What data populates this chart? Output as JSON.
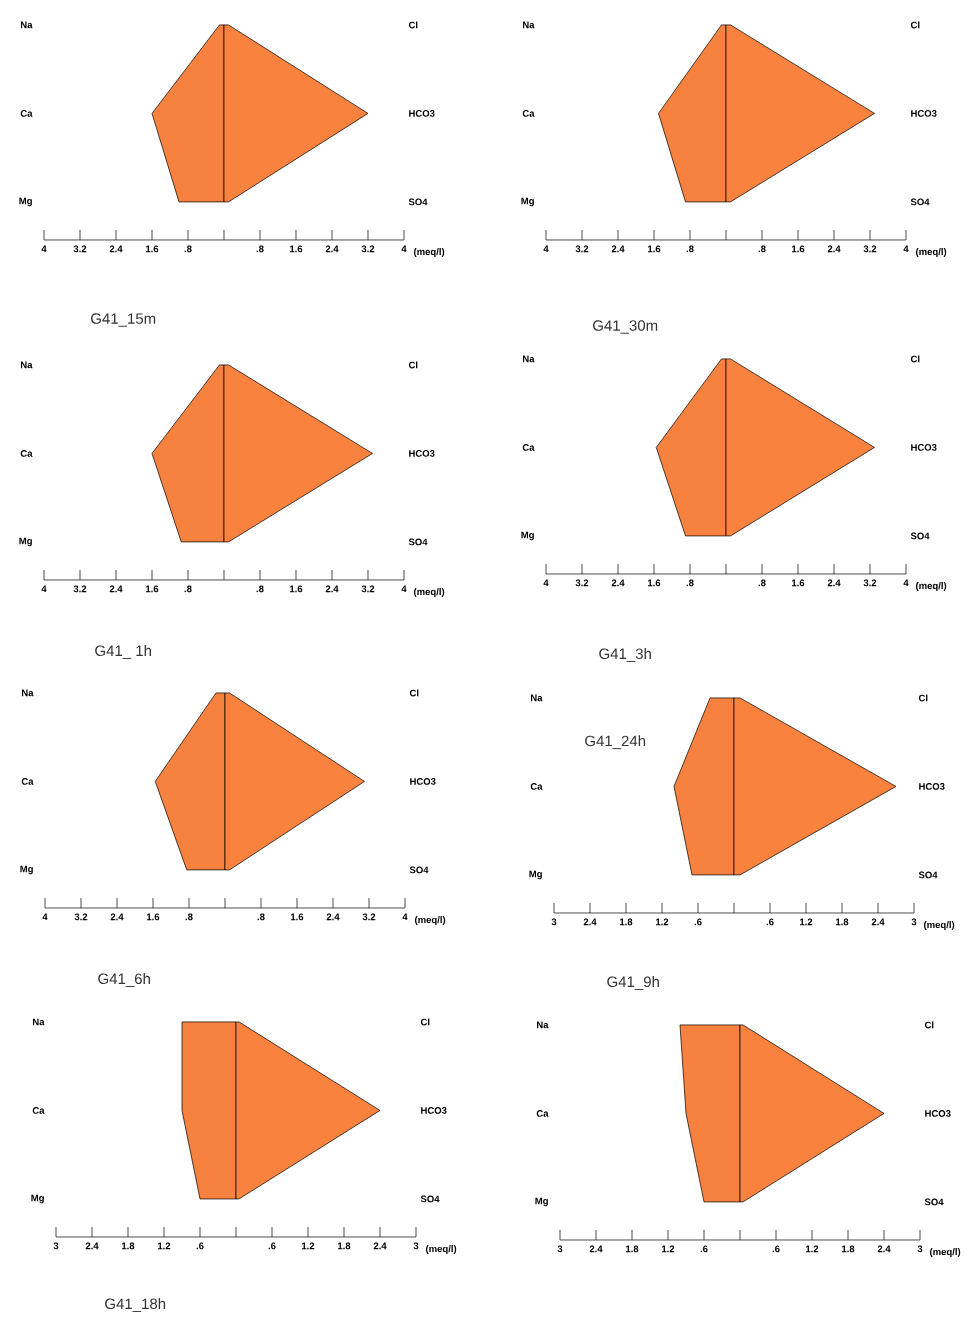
{
  "chart_data": [
    {
      "type": "area",
      "orientation": "horizontal",
      "title": "G41_15m",
      "xlabel": "(meq/l)",
      "categories": [
        "Na",
        "Ca",
        "Mg"
      ],
      "annotations": [
        "Cl",
        "HCO3",
        "SO4"
      ],
      "series": [
        {
          "color": "#f7813f",
          "values": [
            -0.1,
            -1.6,
            -1.0
          ]
        },
        {
          "color": "#f8823e",
          "values": [
            0.1,
            3.2,
            0.1
          ]
        }
      ],
      "xlim": [
        -4,
        4
      ],
      "xticks": [
        {
          "value": -4,
          "label": "4"
        },
        {
          "value": -3.2,
          "label": "3.2"
        },
        {
          "value": -2.4,
          "label": "2.4"
        },
        {
          "value": -1.6,
          "label": "1.6"
        },
        {
          "value": -0.8,
          "label": ".8"
        },
        {
          "value": 0,
          "label": null
        },
        {
          "value": 0.8,
          "label": ".8"
        },
        1.6,
        2.4,
        3.2,
        4
      ]
    },
    {
      "type": "area",
      "orientation": "horizontal",
      "title": "G41_30m",
      "xlabel": "(meq/l)",
      "categories": [
        "Na",
        "Ca",
        "Mg"
      ],
      "annotations": [
        "Cl",
        "HCO3",
        "SO4"
      ],
      "series": [
        {
          "color": "#f7813f",
          "values": [
            -0.1,
            -1.5,
            -0.9
          ]
        },
        {
          "color": "#f8823e",
          "values": [
            0.1,
            3.3,
            0.1
          ]
        }
      ],
      "xlim": [
        -4,
        4
      ],
      "xticks": [
        {
          "value": -4,
          "label": "4"
        },
        {
          "value": -3.2,
          "label": "3.2"
        },
        {
          "value": -2.4,
          "label": "2.4"
        },
        {
          "value": -1.6,
          "label": "1.6"
        },
        {
          "value": -0.8,
          "label": ".8"
        },
        {
          "value": 0,
          "label": null
        },
        {
          "value": 0.8,
          "label": ".8"
        },
        1.6,
        2.4,
        3.2,
        4
      ]
    },
    {
      "type": "area",
      "orientation": "horizontal",
      "title": "G41_ 1h",
      "xlabel": "(meq/l)",
      "categories": [
        "Na",
        "Ca",
        "Mg"
      ],
      "annotations": [
        "Cl",
        "HCO3",
        "SO4"
      ],
      "series": [
        {
          "color": "#f7813f",
          "values": [
            -0.1,
            -1.6,
            -0.95
          ]
        },
        {
          "color": "#f8823e",
          "values": [
            0.1,
            3.3,
            0.1
          ]
        }
      ],
      "xlim": [
        -4,
        4
      ],
      "xticks": [
        {
          "value": -4,
          "label": "4"
        },
        {
          "value": -3.2,
          "label": "3.2"
        },
        {
          "value": -2.4,
          "label": "2.4"
        },
        {
          "value": -1.6,
          "label": "1.6"
        },
        {
          "value": -0.8,
          "label": ".8"
        },
        {
          "value": 0,
          "label": null
        },
        {
          "value": 0.8,
          "label": ".8"
        },
        1.6,
        2.4,
        3.2,
        4
      ]
    },
    {
      "type": "area",
      "orientation": "horizontal",
      "title": "G41_3h",
      "xlabel": "(meq/l)",
      "categories": [
        "Na",
        "Ca",
        "Mg"
      ],
      "annotations": [
        "Cl",
        "HCO3",
        "SO4"
      ],
      "series": [
        {
          "color": "#f7813f",
          "values": [
            -0.1,
            -1.55,
            -0.9
          ]
        },
        {
          "color": "#f8823e",
          "values": [
            0.1,
            3.3,
            0.1
          ]
        }
      ],
      "xlim": [
        -4,
        4
      ],
      "xticks": [
        {
          "value": -4,
          "label": "4"
        },
        {
          "value": -3.2,
          "label": "3.2"
        },
        {
          "value": -2.4,
          "label": "2.4"
        },
        {
          "value": -1.6,
          "label": "1.6"
        },
        {
          "value": -0.8,
          "label": ".8"
        },
        {
          "value": 0,
          "label": null
        },
        {
          "value": 0.8,
          "label": ".8"
        },
        1.6,
        2.4,
        3.2,
        4
      ]
    },
    {
      "type": "area",
      "orientation": "horizontal",
      "title": "G41_6h",
      "xlabel": "(meq/l)",
      "categories": [
        "Na",
        "Ca",
        "Mg"
      ],
      "annotations": [
        "Cl",
        "HCO3",
        "SO4"
      ],
      "series": [
        {
          "color": "#f7813f",
          "values": [
            -0.2,
            -1.55,
            -0.85
          ]
        },
        {
          "color": "#f8823e",
          "values": [
            0.1,
            3.1,
            0.1
          ]
        }
      ],
      "xlim": [
        -4,
        4
      ],
      "xticks": [
        {
          "value": -4,
          "label": "4"
        },
        {
          "value": -3.2,
          "label": "3.2"
        },
        {
          "value": -2.4,
          "label": "2.4"
        },
        {
          "value": -1.6,
          "label": "1.6"
        },
        {
          "value": -0.8,
          "label": ".8"
        },
        {
          "value": 0,
          "label": null
        },
        {
          "value": 0.8,
          "label": ".8"
        },
        1.6,
        2.4,
        3.2,
        4
      ]
    },
    {
      "type": "area",
      "orientation": "horizontal",
      "title": "G41_9h",
      "subtitle": "G41_24h",
      "xlabel": "(meq/l)",
      "categories": [
        "Na",
        "Ca",
        "Mg"
      ],
      "annotations": [
        "Cl",
        "HCO3",
        "SO4"
      ],
      "series": [
        {
          "color": "#f7813f",
          "values": [
            -0.4,
            -1.0,
            -0.7
          ]
        },
        {
          "color": "#f8823e",
          "values": [
            0.1,
            2.7,
            0.1
          ]
        }
      ],
      "xlim": [
        -3,
        3
      ],
      "xticks": [
        {
          "value": -3,
          "label": "3"
        },
        {
          "value": -2.4,
          "label": "2.4"
        },
        {
          "value": -1.8,
          "label": "1.8"
        },
        {
          "value": -1.2,
          "label": "1.2"
        },
        {
          "value": -0.6,
          "label": ".6"
        },
        {
          "value": 0,
          "label": null
        },
        {
          "value": 0.6,
          "label": ".6"
        },
        1.2,
        1.8,
        2.4,
        3
      ]
    },
    {
      "type": "area",
      "orientation": "horizontal",
      "title": "G41_18h",
      "xlabel": "(meq/l)",
      "categories": [
        "Na",
        "Ca",
        "Mg"
      ],
      "annotations": [
        "Cl",
        "HCO3",
        "SO4"
      ],
      "series": [
        {
          "color": "#f7813f",
          "values": [
            -0.9,
            -0.9,
            -0.6
          ]
        },
        {
          "color": "#f8823e",
          "values": [
            0.05,
            2.4,
            0.05
          ]
        }
      ],
      "xlim": [
        -3,
        3
      ],
      "xticks": [
        {
          "value": -3,
          "label": "3"
        },
        {
          "value": -2.4,
          "label": "2.4"
        },
        {
          "value": -1.8,
          "label": "1.8"
        },
        {
          "value": -1.2,
          "label": "1.2"
        },
        {
          "value": -0.6,
          "label": ".6"
        },
        {
          "value": 0,
          "label": null
        },
        {
          "value": 0.6,
          "label": ".6"
        },
        1.2,
        1.8,
        2.4,
        3
      ]
    },
    {
      "type": "area",
      "orientation": "horizontal",
      "xlabel": "(meq/l)",
      "categories": [
        "Na",
        "Ca",
        "Mg"
      ],
      "annotations": [
        "Cl",
        "HCO3",
        "SO4"
      ],
      "series": [
        {
          "color": "#f7813f",
          "values": [
            -1.0,
            -0.9,
            -0.6
          ]
        },
        {
          "color": "#f8823e",
          "values": [
            0.05,
            2.4,
            0.05
          ]
        }
      ],
      "xlim": [
        -3,
        3
      ],
      "xticks": [
        {
          "value": -3,
          "label": "3"
        },
        {
          "value": -2.4,
          "label": "2.4"
        },
        {
          "value": -1.8,
          "label": "1.8"
        },
        {
          "value": -1.2,
          "label": "1.2"
        },
        {
          "value": -0.6,
          "label": ".6"
        },
        {
          "value": 0,
          "label": null
        },
        {
          "value": 0.6,
          "label": ".6"
        },
        1.2,
        1.8,
        2.4,
        3
      ]
    }
  ]
}
